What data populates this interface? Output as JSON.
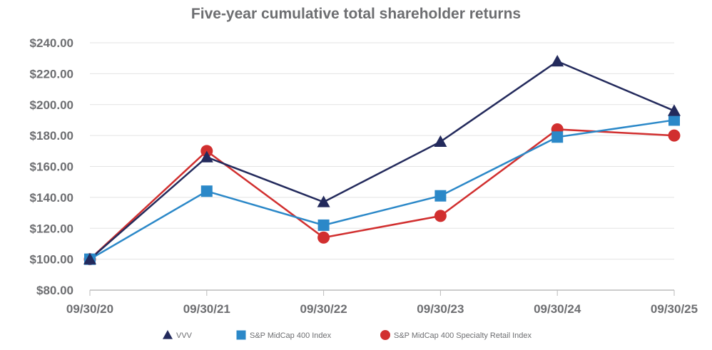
{
  "chart_data": {
    "type": "line",
    "title": "Five-year cumulative total shareholder returns",
    "categories": [
      "09/30/20",
      "09/30/21",
      "09/30/22",
      "09/30/23",
      "09/30/24",
      "09/30/25"
    ],
    "yticks": [
      "$80.00",
      "$100.00",
      "$120.00",
      "$140.00",
      "$160.00",
      "$180.00",
      "$200.00",
      "$220.00",
      "$240.00"
    ],
    "ylim": [
      80,
      240
    ],
    "grid": true,
    "legend_position": "bottom",
    "series": [
      {
        "name": "VVV",
        "color": "#232a5c",
        "marker": "triangle",
        "values": [
          100,
          166,
          137,
          176,
          228,
          196
        ]
      },
      {
        "name": "S&P MidCap 400 Index",
        "color": "#2b88c8",
        "marker": "square",
        "values": [
          100,
          144,
          122,
          141,
          179,
          190
        ]
      },
      {
        "name": "S&P MidCap 400 Specialty Retail Index",
        "color": "#d12f2f",
        "marker": "circle",
        "values": [
          100,
          170,
          114,
          128,
          184,
          180
        ]
      }
    ]
  }
}
